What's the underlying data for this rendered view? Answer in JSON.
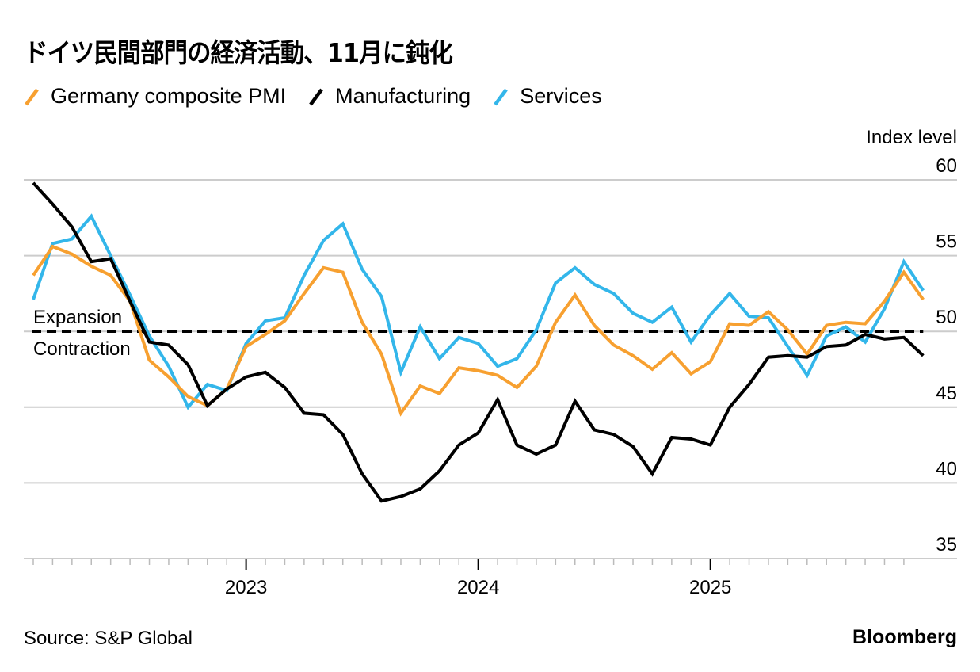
{
  "title": "ドイツ民間部門の経済活動、11月に鈍化",
  "source": "Source: S&P Global",
  "brand": "Bloomberg",
  "chart_data": {
    "type": "line",
    "title": "ドイツ民間部門の経済活動、11月に鈍化",
    "ylabel": "Index level",
    "xlabel": "",
    "ylim": [
      35,
      60
    ],
    "yticks": [
      60,
      55,
      50,
      45,
      40,
      35
    ],
    "grid": true,
    "legend_position": "top-left",
    "x_start": "2022-01",
    "x_end": "2025-11",
    "x_frequency": "monthly",
    "xtick_labels": [
      "2023",
      "2024",
      "2025"
    ],
    "reference_line": {
      "value": 50,
      "style": "dashed",
      "label_above": "Expansion",
      "label_below": "Contraction"
    },
    "series": [
      {
        "name": "Germany composite PMI",
        "color": "#f7a030",
        "values": [
          53.7,
          55.6,
          55.1,
          54.3,
          53.7,
          52.0,
          48.1,
          47.0,
          45.7,
          45.1,
          46.2,
          49.0,
          49.8,
          50.7,
          52.5,
          54.2,
          53.9,
          50.6,
          48.5,
          44.6,
          46.4,
          45.9,
          47.6,
          47.4,
          47.1,
          46.3,
          47.7,
          50.6,
          52.4,
          50.4,
          49.1,
          48.4,
          47.5,
          48.6,
          47.2,
          48.0,
          50.5,
          50.4,
          51.3,
          50.1,
          48.5,
          50.4,
          50.6,
          50.5,
          52.0,
          53.9,
          52.1
        ]
      },
      {
        "name": "Manufacturing",
        "color": "#000000",
        "values": [
          59.8,
          58.4,
          56.9,
          54.6,
          54.8,
          52.0,
          49.3,
          49.1,
          47.8,
          45.1,
          46.2,
          47.0,
          47.3,
          46.3,
          44.6,
          44.5,
          43.2,
          40.6,
          38.8,
          39.1,
          39.6,
          40.8,
          42.5,
          43.3,
          45.5,
          42.5,
          41.9,
          42.5,
          45.4,
          43.5,
          43.2,
          42.4,
          40.6,
          43.0,
          42.9,
          42.5,
          45.0,
          46.5,
          48.3,
          48.4,
          48.3,
          49.0,
          49.1,
          49.8,
          49.5,
          49.6,
          48.4
        ]
      },
      {
        "name": "Services",
        "color": "#33b6ea",
        "values": [
          52.1,
          55.8,
          56.1,
          57.6,
          55.0,
          52.4,
          49.7,
          47.7,
          45.0,
          46.5,
          46.1,
          49.2,
          50.7,
          50.9,
          53.7,
          56.0,
          57.1,
          54.1,
          52.3,
          47.3,
          50.3,
          48.2,
          49.6,
          49.2,
          47.7,
          48.2,
          50.1,
          53.2,
          54.2,
          53.1,
          52.5,
          51.2,
          50.6,
          51.6,
          49.3,
          51.1,
          52.5,
          51.0,
          50.9,
          49.0,
          47.1,
          49.7,
          50.3,
          49.3,
          51.5,
          54.6,
          52.7
        ]
      }
    ]
  }
}
